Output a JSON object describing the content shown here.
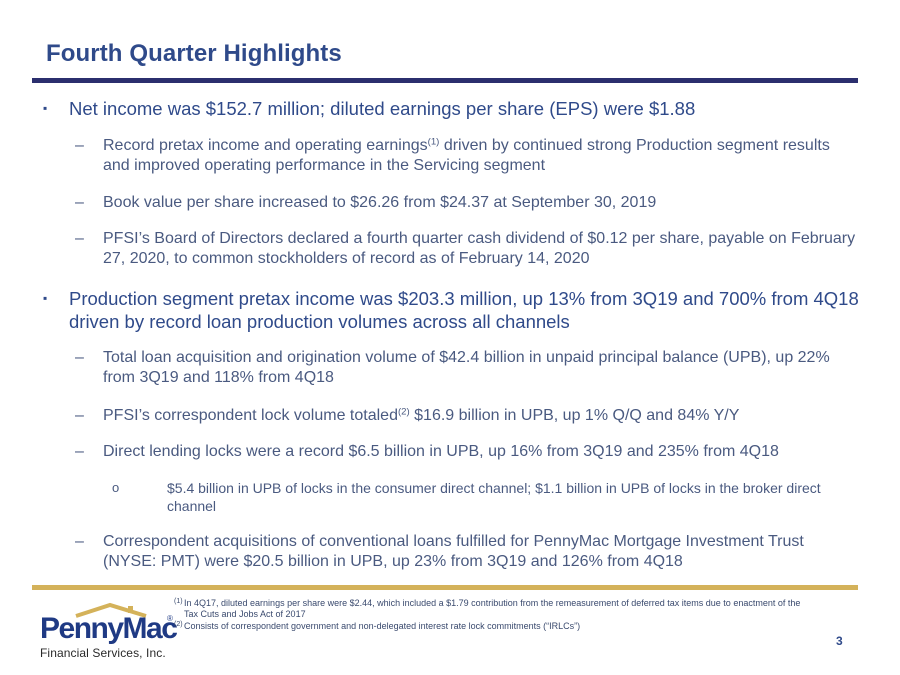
{
  "title": "Fourth Quarter Highlights",
  "bullets": [
    {
      "text": "Net income was $152.7 million; diluted earnings per share (EPS) were $1.88",
      "sub": [
        {
          "pre": "Record pretax income and operating earnings",
          "sup": "(1)",
          "post": " driven by continued strong Production segment results and improved operating performance in the Servicing segment"
        },
        {
          "text": "Book value per share increased to $26.26 from $24.37 at September 30, 2019"
        },
        {
          "text": "PFSI’s Board of Directors declared a fourth quarter cash dividend of $0.12 per share, payable on February 27, 2020, to common stockholders of record as of February 14, 2020"
        }
      ]
    },
    {
      "text": "Production segment pretax income was $203.3 million, up 13% from 3Q19 and 700% from 4Q18 driven by record loan production volumes across all channels",
      "sub": [
        {
          "text": "Total loan acquisition and origination volume of $42.4 billion in unpaid principal balance (UPB), up 22% from 3Q19 and 118% from 4Q18"
        },
        {
          "pre": "PFSI’s correspondent lock volume totaled",
          "sup": "(2)",
          "post": " $16.9 billion in UPB, up 1% Q/Q and 84% Y/Y"
        },
        {
          "text": "Direct lending locks were a record $6.5 billion in UPB, up 16% from 3Q19 and 235% from 4Q18"
        },
        {
          "text": "$5.4 billion in UPB of locks in the consumer direct channel; $1.1 billion in UPB of locks in the broker direct channel"
        },
        {
          "text": "Correspondent acquisitions of conventional loans fulfilled for PennyMac Mortgage Investment Trust (NYSE: PMT) were $20.5 billion in UPB, up 23% from 3Q19 and 126% from 4Q18"
        }
      ]
    }
  ],
  "footnotes": [
    {
      "mark": "(1)",
      "text": "In 4Q17, diluted earnings per share were $2.44, which included a $1.79 contribution from the remeasurement of deferred tax items due to enactment of the Tax Cuts and Jobs Act of 2017"
    },
    {
      "mark": "(2)",
      "text": "Consists of correspondent government and non-delegated interest rate lock commitments (“IRLCs”)"
    }
  ],
  "page_number": "3",
  "logo": {
    "word": "PennyMac",
    "reg": "®",
    "subtitle": "Financial Services, Inc."
  },
  "markers": {
    "l1": "▪",
    "l2": "–",
    "l3": "o"
  },
  "colors": {
    "title": "#2f4a8a",
    "rule": "#2b2f6e",
    "accent": "#d4b25a"
  }
}
